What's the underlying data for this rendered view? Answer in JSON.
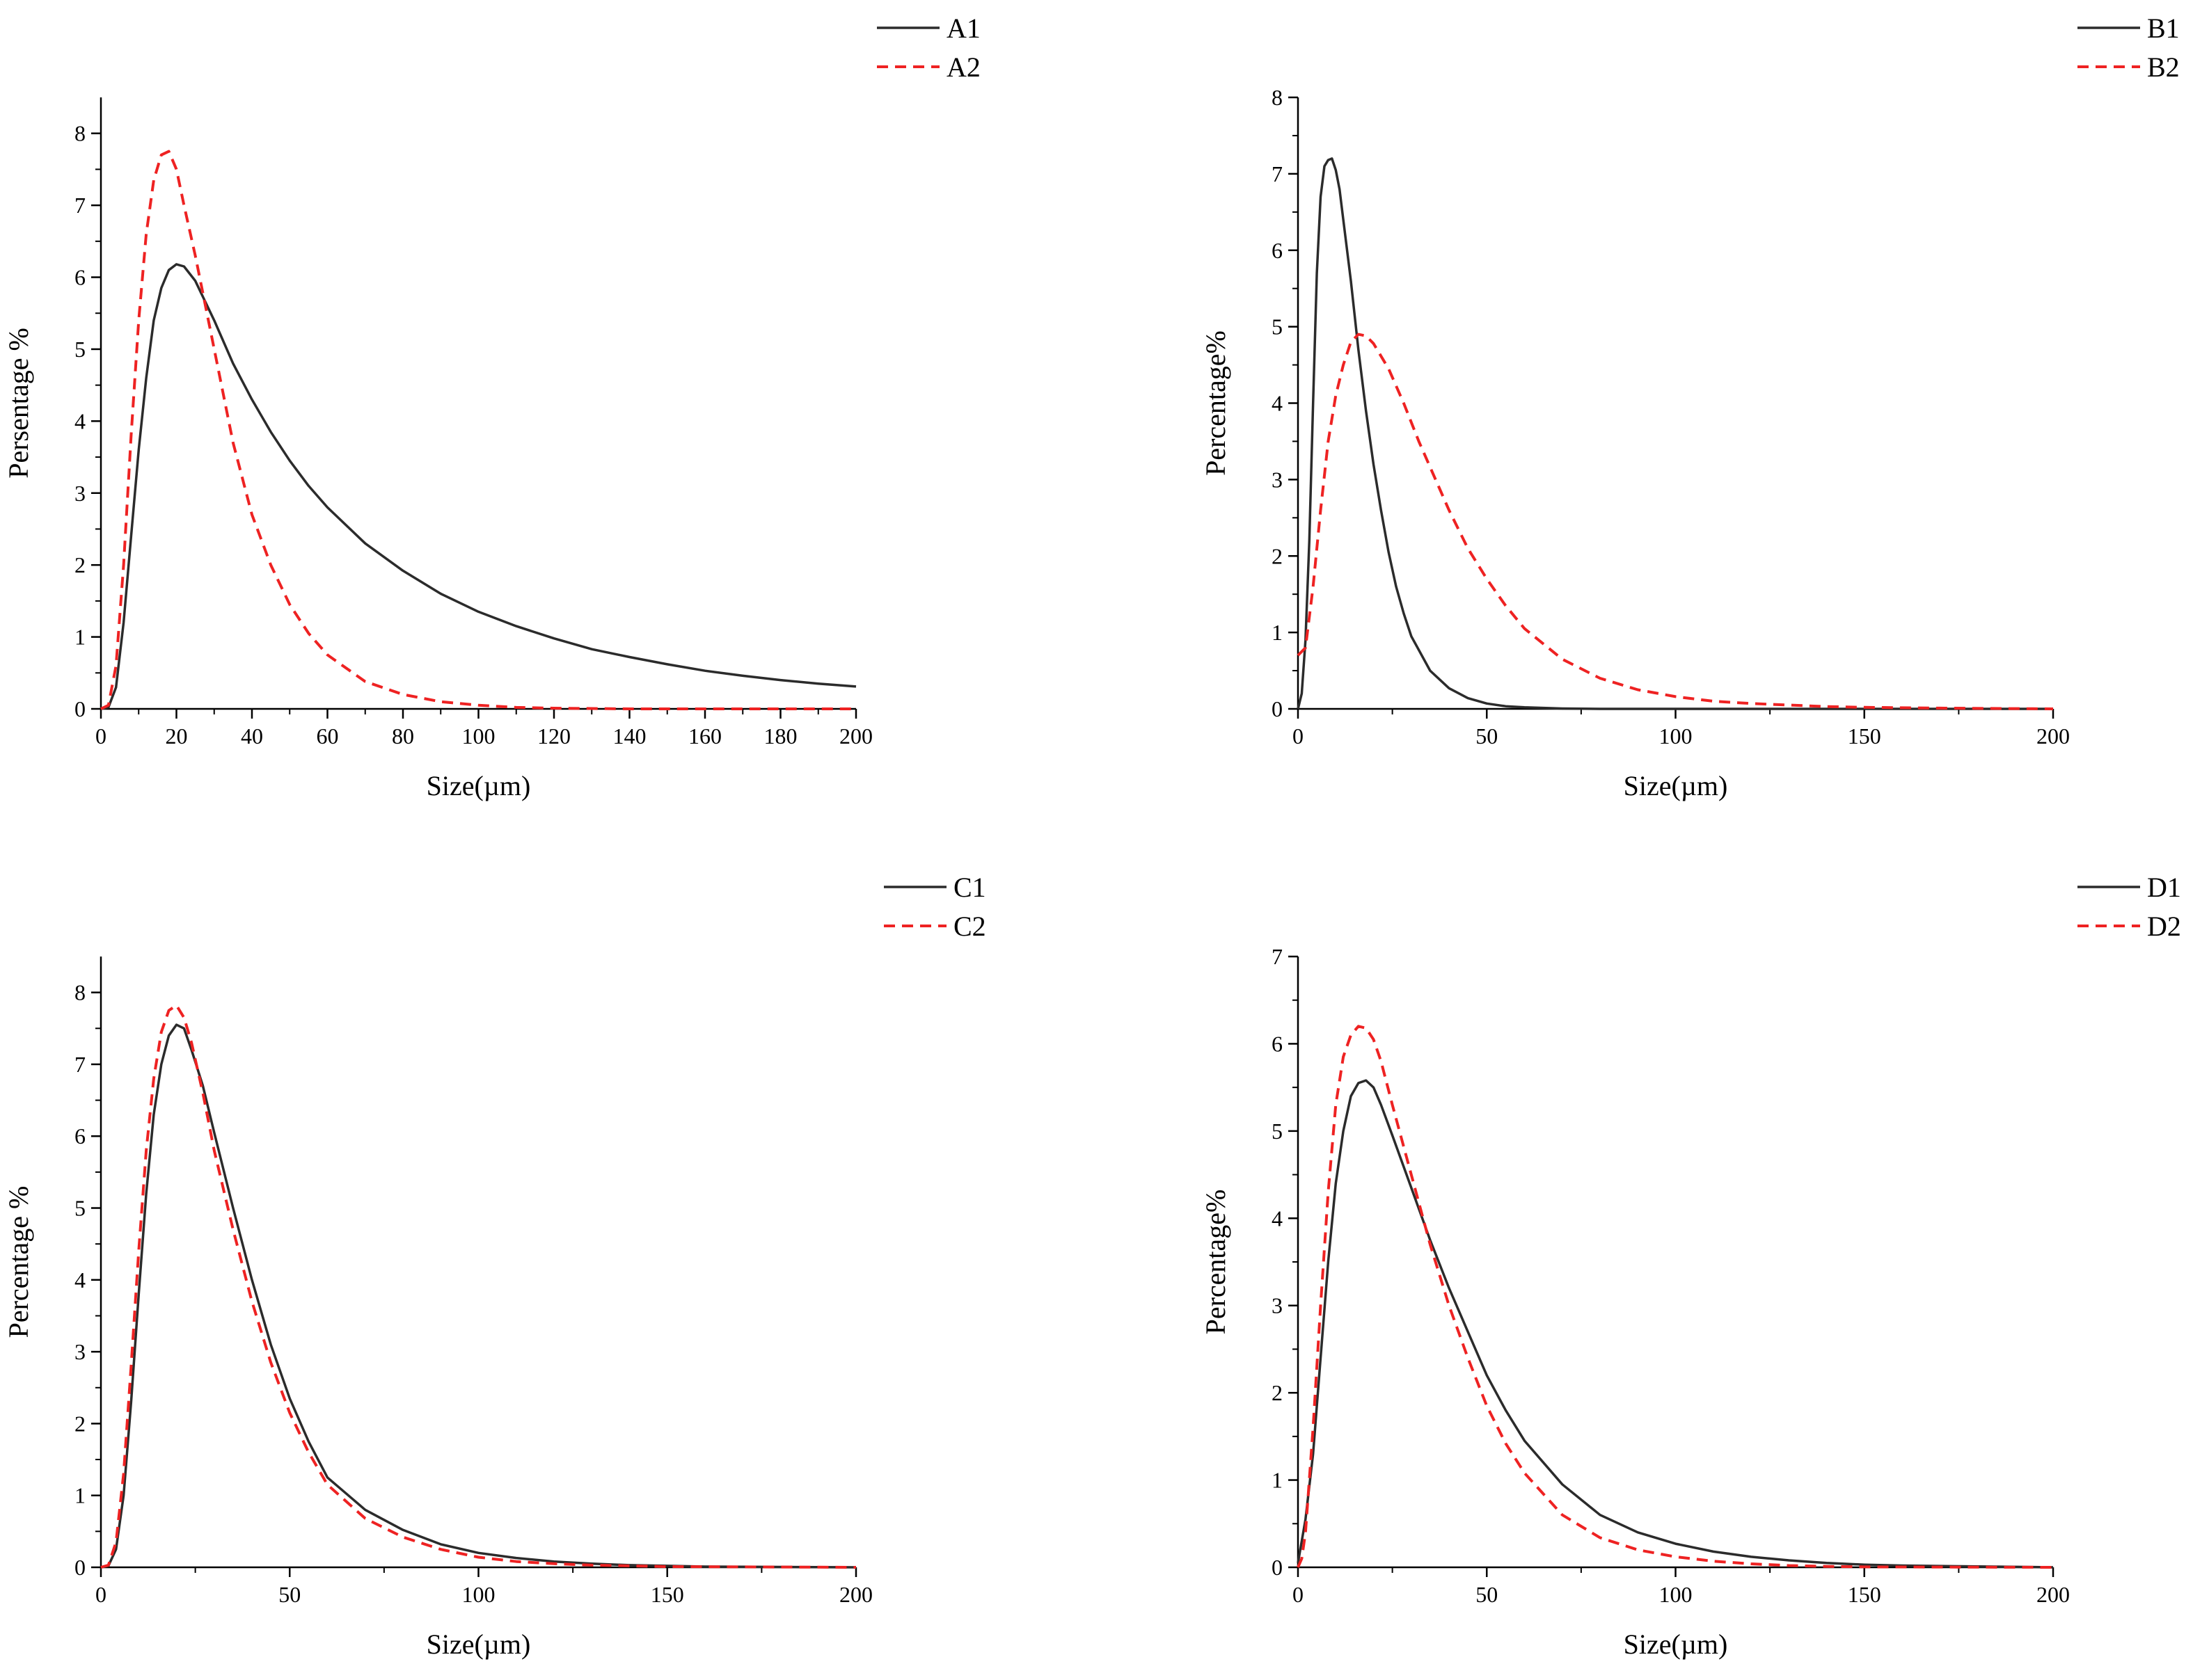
{
  "colors": {
    "series1": "#2b2b2b",
    "series2": "#ee2222",
    "axis": "#000000"
  },
  "chart_data": [
    {
      "type": "line",
      "title": "",
      "xlabel": "Size(µm)",
      "ylabel": "Persentage %",
      "xlim": [
        0,
        200
      ],
      "ylim": [
        0,
        8.5
      ],
      "xticks": [
        0,
        20,
        40,
        60,
        80,
        100,
        120,
        140,
        160,
        180,
        200
      ],
      "yticks": [
        0,
        1,
        2,
        3,
        4,
        5,
        6,
        7,
        8
      ],
      "legend_position": "top-right",
      "series": [
        {
          "name": "A1",
          "style": "solid",
          "x": [
            0,
            2,
            4,
            6,
            8,
            10,
            12,
            14,
            16,
            18,
            20,
            22,
            25,
            30,
            35,
            40,
            45,
            50,
            55,
            60,
            70,
            80,
            90,
            100,
            110,
            120,
            130,
            140,
            150,
            160,
            170,
            180,
            190,
            200
          ],
          "y": [
            0,
            0.02,
            0.3,
            1.2,
            2.4,
            3.6,
            4.6,
            5.4,
            5.85,
            6.1,
            6.18,
            6.15,
            5.95,
            5.4,
            4.8,
            4.3,
            3.85,
            3.45,
            3.1,
            2.8,
            2.3,
            1.92,
            1.6,
            1.35,
            1.15,
            0.98,
            0.83,
            0.72,
            0.62,
            0.53,
            0.46,
            0.4,
            0.35,
            0.31
          ]
        },
        {
          "name": "A2",
          "style": "dashed",
          "x": [
            0,
            2,
            4,
            6,
            8,
            10,
            12,
            14,
            16,
            18,
            20,
            22,
            25,
            30,
            35,
            40,
            45,
            50,
            55,
            60,
            70,
            80,
            90,
            100,
            110,
            120,
            130,
            140,
            150,
            200
          ],
          "y": [
            0,
            0.05,
            0.6,
            2.0,
            3.8,
            5.4,
            6.6,
            7.35,
            7.7,
            7.75,
            7.5,
            7.0,
            6.3,
            5.0,
            3.7,
            2.7,
            2.0,
            1.45,
            1.05,
            0.75,
            0.38,
            0.2,
            0.1,
            0.05,
            0.02,
            0.01,
            0.005,
            0,
            0,
            0
          ]
        }
      ]
    },
    {
      "type": "line",
      "title": "",
      "xlabel": "Size(µm)",
      "ylabel": "Percentage%",
      "xlim": [
        0,
        200
      ],
      "ylim": [
        0,
        8
      ],
      "xticks": [
        0,
        50,
        100,
        150,
        200
      ],
      "yticks": [
        0,
        1,
        2,
        3,
        4,
        5,
        6,
        7,
        8
      ],
      "legend_position": "top-right",
      "series": [
        {
          "name": "B1",
          "style": "solid",
          "x": [
            0,
            1,
            2,
            3,
            4,
            5,
            6,
            7,
            8,
            9,
            10,
            11,
            12,
            14,
            16,
            18,
            20,
            22,
            24,
            26,
            28,
            30,
            35,
            40,
            45,
            50,
            55,
            60,
            70,
            80,
            100,
            150,
            200
          ],
          "y": [
            0,
            0.2,
            0.9,
            2.2,
            4.0,
            5.7,
            6.7,
            7.1,
            7.18,
            7.2,
            7.05,
            6.8,
            6.4,
            5.6,
            4.7,
            3.9,
            3.2,
            2.6,
            2.05,
            1.6,
            1.25,
            0.95,
            0.5,
            0.27,
            0.14,
            0.07,
            0.035,
            0.02,
            0.005,
            0,
            0,
            0,
            0
          ]
        },
        {
          "name": "B2",
          "style": "dashed",
          "x": [
            0,
            2,
            4,
            6,
            8,
            10,
            12,
            14,
            16,
            18,
            20,
            24,
            28,
            32,
            36,
            40,
            45,
            50,
            55,
            60,
            70,
            80,
            90,
            100,
            110,
            120,
            130,
            140,
            150,
            170,
            200
          ],
          "y": [
            0.7,
            0.8,
            1.6,
            2.6,
            3.5,
            4.1,
            4.5,
            4.8,
            4.9,
            4.88,
            4.78,
            4.45,
            4.0,
            3.5,
            3.05,
            2.6,
            2.1,
            1.7,
            1.35,
            1.05,
            0.65,
            0.4,
            0.25,
            0.16,
            0.1,
            0.07,
            0.05,
            0.03,
            0.02,
            0.01,
            0
          ]
        }
      ]
    },
    {
      "type": "line",
      "title": "",
      "xlabel": "Size(µm)",
      "ylabel": "Percentage %",
      "xlim": [
        0,
        200
      ],
      "ylim": [
        0,
        8.5
      ],
      "xticks": [
        0,
        50,
        100,
        150,
        200
      ],
      "yticks": [
        0,
        1,
        2,
        3,
        4,
        5,
        6,
        7,
        8
      ],
      "legend_position": "top-right",
      "series": [
        {
          "name": "C1",
          "style": "solid",
          "x": [
            0,
            2,
            4,
            6,
            8,
            10,
            12,
            14,
            16,
            18,
            20,
            22,
            24,
            27,
            30,
            35,
            40,
            45,
            50,
            55,
            60,
            70,
            80,
            90,
            100,
            110,
            120,
            130,
            140,
            150,
            160,
            200
          ],
          "y": [
            0,
            0.02,
            0.25,
            1.0,
            2.3,
            3.8,
            5.2,
            6.3,
            7.0,
            7.4,
            7.55,
            7.5,
            7.2,
            6.7,
            6.05,
            5.0,
            4.0,
            3.1,
            2.35,
            1.75,
            1.25,
            0.8,
            0.52,
            0.32,
            0.2,
            0.13,
            0.08,
            0.05,
            0.03,
            0.02,
            0.01,
            0
          ]
        },
        {
          "name": "C2",
          "style": "dashed",
          "x": [
            0,
            2,
            4,
            6,
            8,
            10,
            12,
            14,
            16,
            18,
            20,
            22,
            24,
            27,
            30,
            35,
            40,
            45,
            50,
            55,
            60,
            70,
            80,
            90,
            100,
            110,
            120,
            130,
            140,
            150,
            200
          ],
          "y": [
            0,
            0.03,
            0.35,
            1.3,
            2.8,
            4.4,
            5.8,
            6.8,
            7.45,
            7.75,
            7.82,
            7.65,
            7.3,
            6.6,
            5.8,
            4.7,
            3.7,
            2.85,
            2.15,
            1.6,
            1.15,
            0.68,
            0.42,
            0.25,
            0.14,
            0.08,
            0.05,
            0.03,
            0.02,
            0.01,
            0
          ]
        }
      ]
    },
    {
      "type": "line",
      "title": "",
      "xlabel": "Size(µm)",
      "ylabel": "Percentage%",
      "xlim": [
        0,
        200
      ],
      "ylim": [
        0,
        7
      ],
      "xticks": [
        0,
        50,
        100,
        150,
        200
      ],
      "yticks": [
        0,
        1,
        2,
        3,
        4,
        5,
        6,
        7
      ],
      "legend_position": "top-right",
      "series": [
        {
          "name": "D1",
          "style": "solid",
          "x": [
            0,
            1,
            2,
            4,
            6,
            8,
            10,
            12,
            14,
            16,
            18,
            20,
            22,
            25,
            30,
            35,
            40,
            45,
            50,
            55,
            60,
            70,
            80,
            90,
            100,
            110,
            120,
            130,
            140,
            150,
            160,
            200
          ],
          "y": [
            0.05,
            0.3,
            0.55,
            1.3,
            2.4,
            3.5,
            4.4,
            5.0,
            5.4,
            5.55,
            5.58,
            5.5,
            5.3,
            4.95,
            4.35,
            3.75,
            3.2,
            2.7,
            2.2,
            1.8,
            1.45,
            0.95,
            0.6,
            0.4,
            0.27,
            0.18,
            0.12,
            0.08,
            0.05,
            0.03,
            0.02,
            0
          ]
        },
        {
          "name": "D2",
          "style": "dashed",
          "x": [
            0,
            1,
            2,
            4,
            6,
            8,
            10,
            12,
            14,
            16,
            18,
            20,
            22,
            25,
            30,
            35,
            40,
            45,
            50,
            55,
            60,
            70,
            80,
            90,
            100,
            110,
            120,
            130,
            140,
            150,
            200
          ],
          "y": [
            0,
            0.1,
            0.4,
            1.6,
            3.0,
            4.3,
            5.3,
            5.85,
            6.1,
            6.2,
            6.18,
            6.05,
            5.8,
            5.3,
            4.5,
            3.7,
            3.0,
            2.4,
            1.85,
            1.42,
            1.08,
            0.6,
            0.34,
            0.2,
            0.12,
            0.07,
            0.04,
            0.02,
            0.01,
            0.005,
            0
          ]
        }
      ]
    }
  ]
}
